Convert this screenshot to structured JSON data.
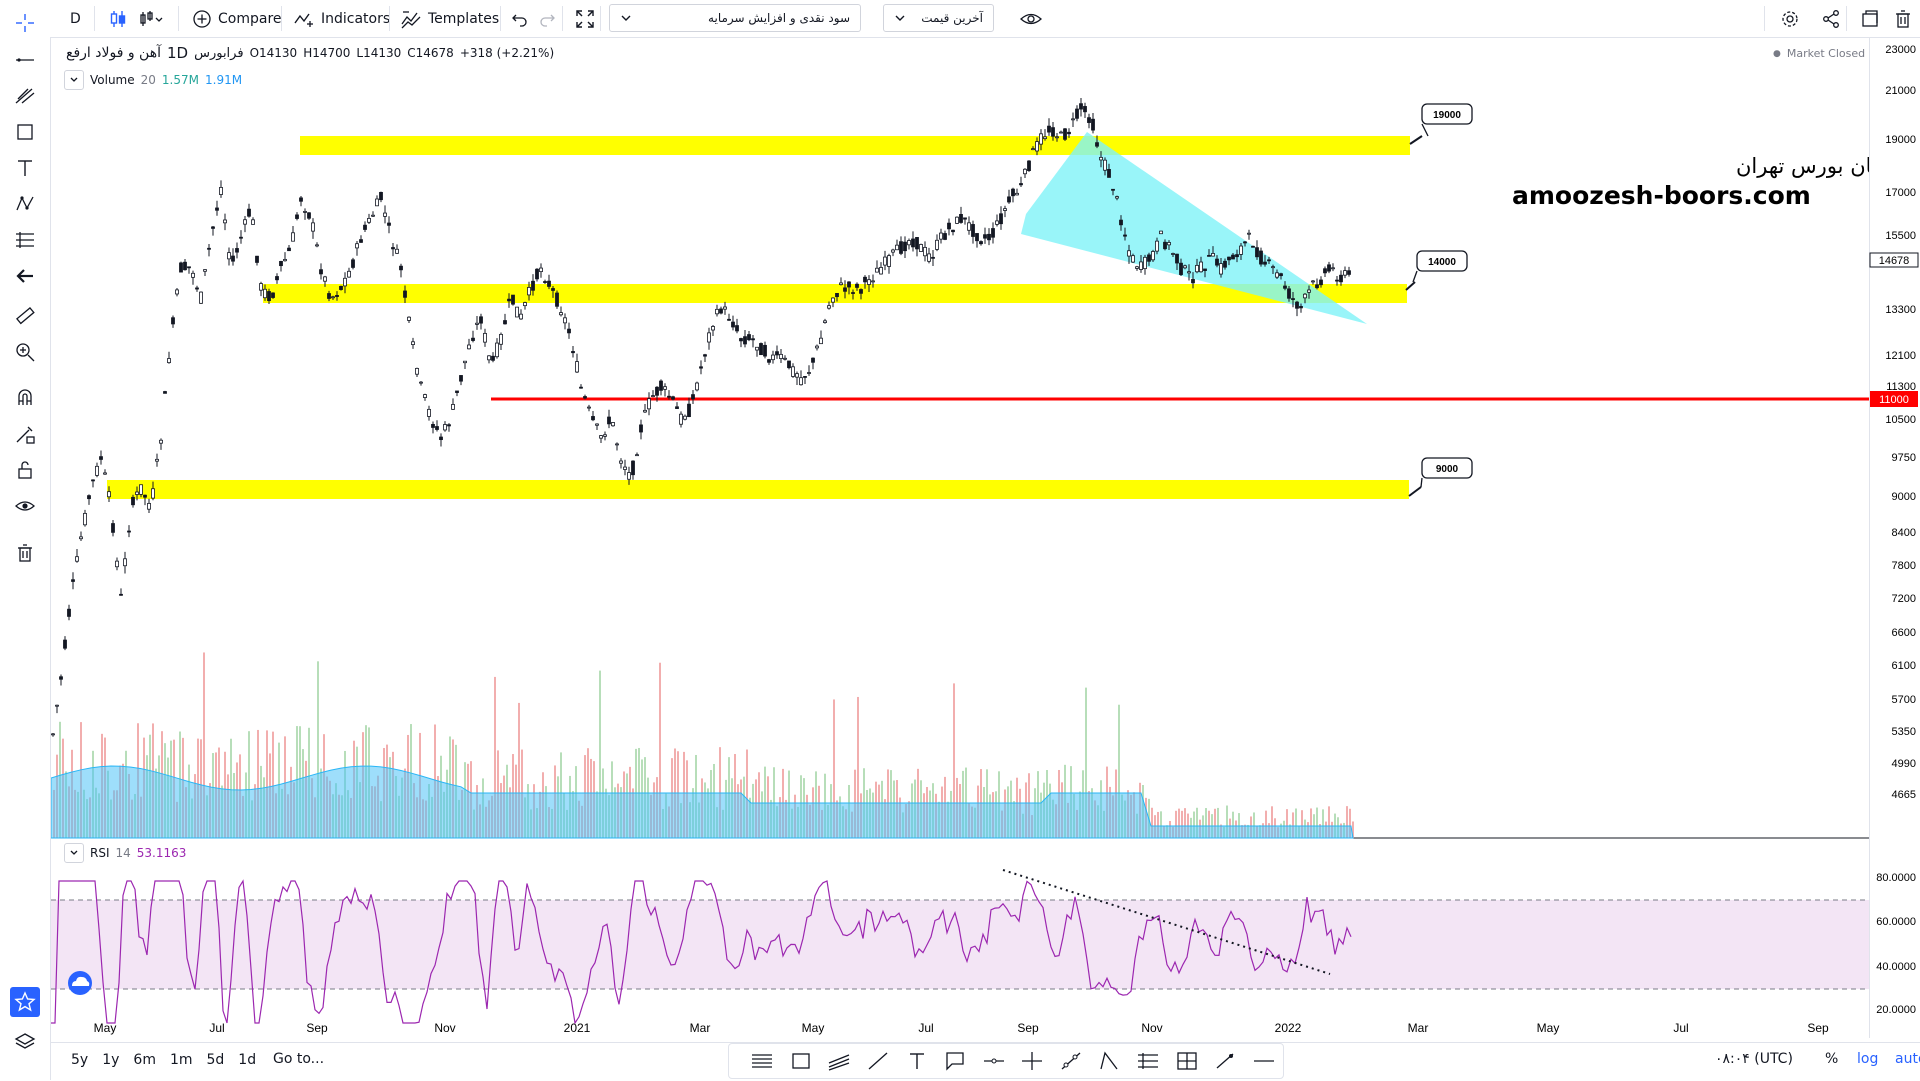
{
  "toolbar": {
    "interval": "D",
    "compare_label": "Compare",
    "indicators_label": "Indicators",
    "templates_label": "Templates",
    "symbol_dropdown": "سود نقدی و افزایش سرمایه",
    "price_dropdown": "آخرین قیمت",
    "icons": [
      "cursor-icon",
      "candles-icon",
      "bar-type-icon",
      "plus-circle-icon",
      "indicators-icon",
      "templates-icon",
      "undo-icon",
      "redo-icon",
      "fullscreen-icon",
      "eye-icon",
      "gear-icon",
      "share-icon",
      "snapshot-icon",
      "trash-icon"
    ]
  },
  "legend": {
    "symbol": "آهن و فولاد ارفع",
    "interval": "1D",
    "exchange": "فرابورس",
    "open": "O14130",
    "high": "H14700",
    "low": "L14130",
    "close": "C14678",
    "change": "+318 (+2.21%)",
    "market_status": "Market Closed"
  },
  "volume_legend": {
    "name": "Volume",
    "length": "20",
    "v1": "1.57M",
    "v2": "1.91M"
  },
  "rsi_legend": {
    "name": "RSI",
    "length": "14",
    "value": "53.1163"
  },
  "watermark": {
    "line1": "انجمن خبرگان بورس تهران",
    "line2": "amoozesh-boors.com"
  },
  "price_scale": {
    "labels": [
      "23000",
      "21000",
      "19000",
      "17000",
      "15500",
      "13300",
      "12100",
      "11300",
      "10500",
      "9750",
      "9000",
      "8400",
      "7800",
      "7200",
      "6600",
      "6100",
      "5700",
      "5350",
      "4990",
      "4665"
    ],
    "current_price": "14678",
    "level_11000": "11000"
  },
  "rsi_scale": {
    "labels": [
      "80.0000",
      "60.0000",
      "40.0000",
      "20.0000"
    ]
  },
  "time_axis": {
    "labels": [
      "May",
      "Jul",
      "Sep",
      "Nov",
      "2021",
      "Mar",
      "May",
      "Jul",
      "Sep",
      "Nov",
      "2022",
      "Mar",
      "May",
      "Jul",
      "Sep"
    ]
  },
  "level_callouts": {
    "c19000": "19000",
    "c14000": "14000",
    "c9000": "9000"
  },
  "bottom": {
    "ranges": [
      "5y",
      "1y",
      "6m",
      "1m",
      "5d",
      "1d"
    ],
    "goto": "Go to...",
    "time": "۰۸:۰۴ (UTC)",
    "percent": "%",
    "log": "log",
    "auto": "auto"
  },
  "colors": {
    "accent": "#2962ff",
    "yellow": "#ffff00",
    "red": "#ff0000",
    "cyan": "#7ff3f8",
    "rsi": "#9c27b0",
    "rsi_band": "#f3e5f5"
  }
}
